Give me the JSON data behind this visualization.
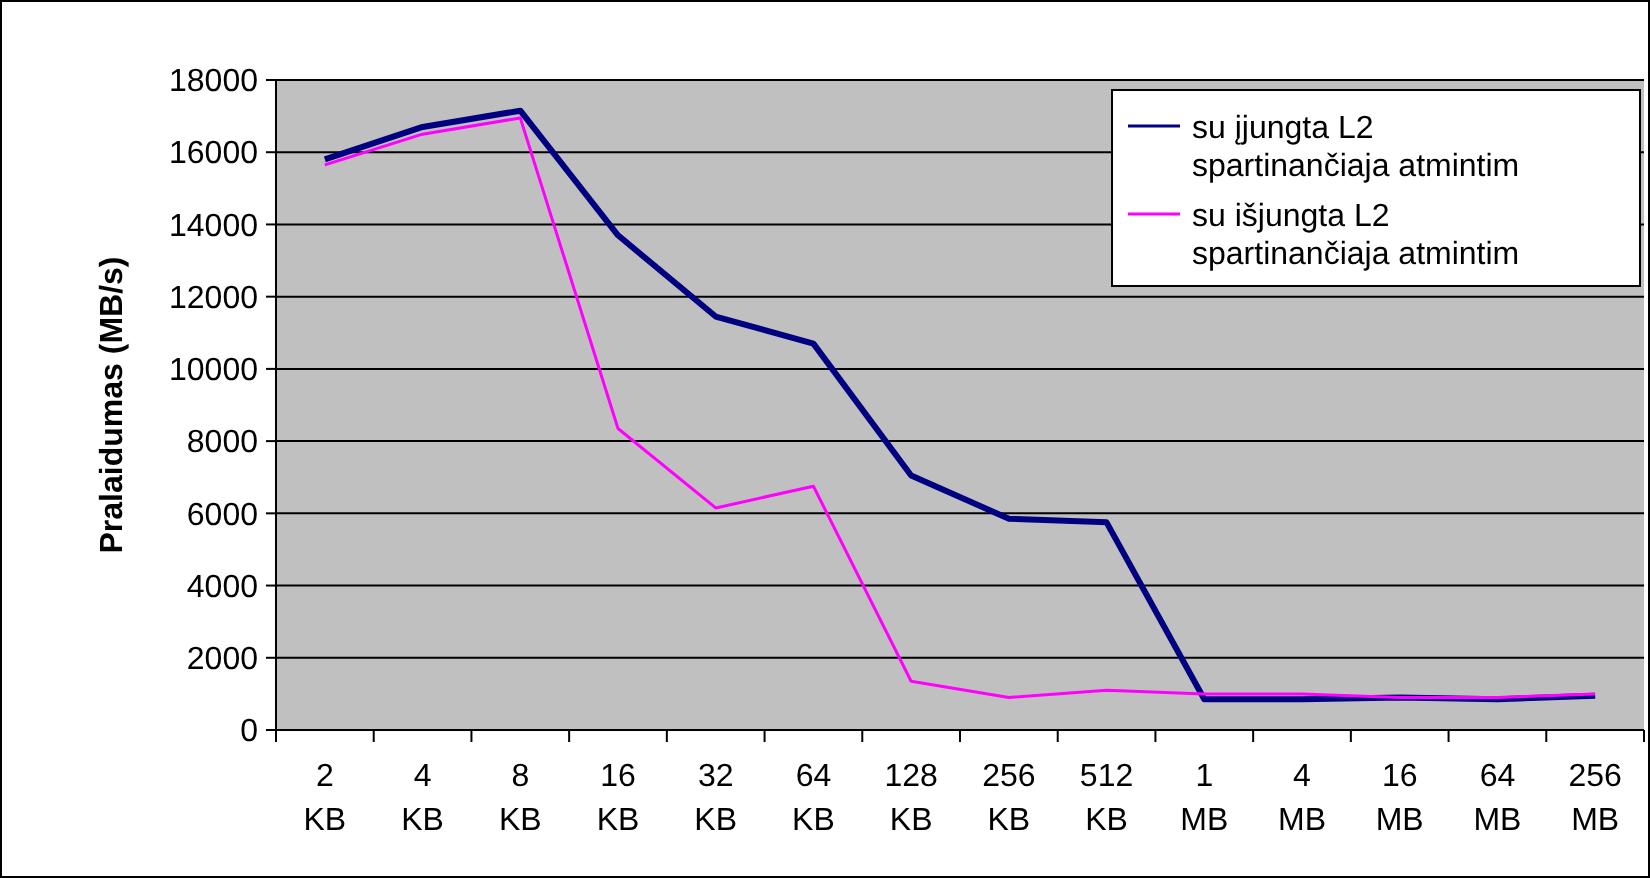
{
  "chart_data": {
    "type": "line",
    "ylabel": "Pralaidumas (MB/s)",
    "categories": [
      "2 KB",
      "4 KB",
      "8 KB",
      "16 KB",
      "32 KB",
      "64 KB",
      "128 KB",
      "256 KB",
      "512 KB",
      "1 MB",
      "4 MB",
      "16 MB",
      "64 MB",
      "256 MB"
    ],
    "series": [
      {
        "name": "su įjungta L2 spartinančiaja atmintim",
        "color": "#000080",
        "values": [
          15800,
          16700,
          17150,
          13700,
          11450,
          10700,
          7050,
          5850,
          5750,
          850,
          850,
          900,
          850,
          950
        ]
      },
      {
        "name": "su išjungta L2 spartinančiaja atmintim",
        "color": "#ff00ff",
        "values": [
          15650,
          16500,
          16950,
          8350,
          6150,
          6750,
          1350,
          900,
          1100,
          1000,
          1000,
          900,
          900,
          1000
        ]
      }
    ],
    "ylim": [
      0,
      18000
    ],
    "yticks": [
      0,
      2000,
      4000,
      6000,
      8000,
      10000,
      12000,
      14000,
      16000,
      18000
    ],
    "grid": "y",
    "legend": "top right",
    "marker": "none",
    "line_style": "solid"
  }
}
